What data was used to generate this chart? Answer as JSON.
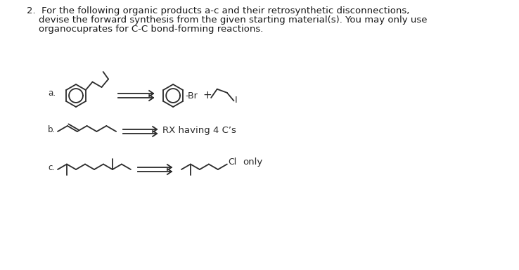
{
  "bg_color": "#ffffff",
  "text_color": "#1a1a1a",
  "line_color": "#2a2a2a",
  "title_line1": "2.  For the following organic products a-c and their retrosynthetic disconnections,",
  "title_line2": "    devise the forward synthesis from the given starting material(s). You may only use",
  "title_line3": "    organocuprates for C-C bond-forming reactions.",
  "label_a": "a.",
  "label_b": "b.",
  "label_c": "c.",
  "rx_text": "RX having 4 C’s",
  "only_text": "only",
  "br_text": "-Br",
  "plus_text": "+",
  "I_text": "I",
  "Cl_text": "Cl"
}
